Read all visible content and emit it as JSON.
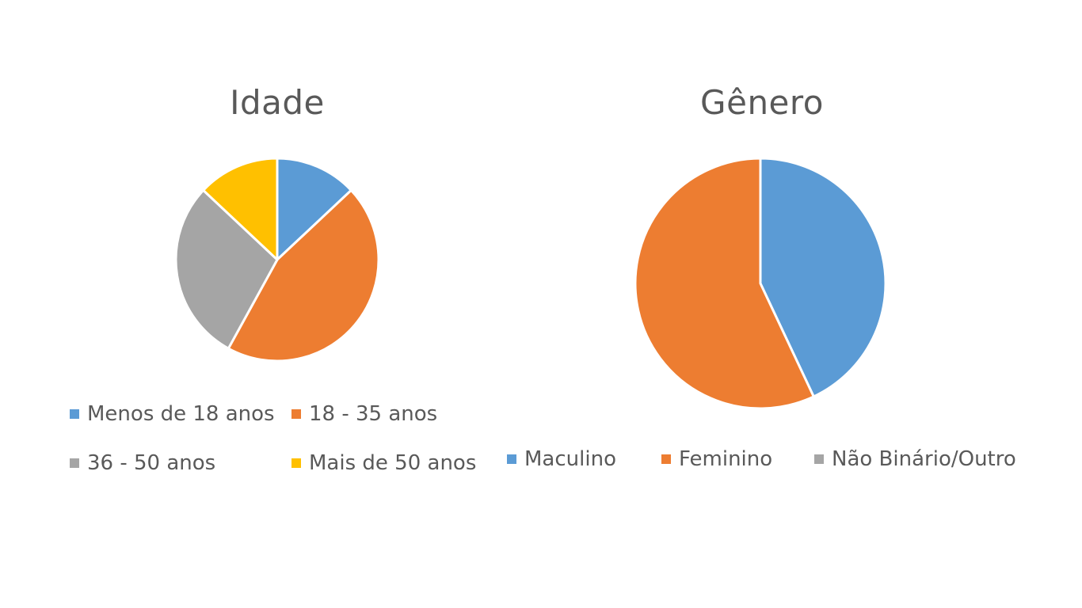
{
  "chart_data": [
    {
      "type": "pie",
      "title": "Idade",
      "categories": [
        "Menos de 18 anos",
        "18 - 35 anos",
        "36 - 50 anos",
        "Mais de 50 anos"
      ],
      "values": [
        13,
        45,
        29,
        13
      ],
      "colors": [
        "#5B9BD5",
        "#ED7D31",
        "#A5A5A5",
        "#FFC000"
      ],
      "legend_position": "bottom"
    },
    {
      "type": "pie",
      "title": "Gênero",
      "categories": [
        "Maculino",
        "Feminino",
        "Não Binário/Outro"
      ],
      "values": [
        43,
        57,
        0
      ],
      "colors": [
        "#5B9BD5",
        "#ED7D31",
        "#A5A5A5"
      ],
      "legend_position": "bottom",
      "legend_visible_text": [
        "Maculino",
        "Feminino",
        "Não Binário/Outro"
      ]
    }
  ]
}
